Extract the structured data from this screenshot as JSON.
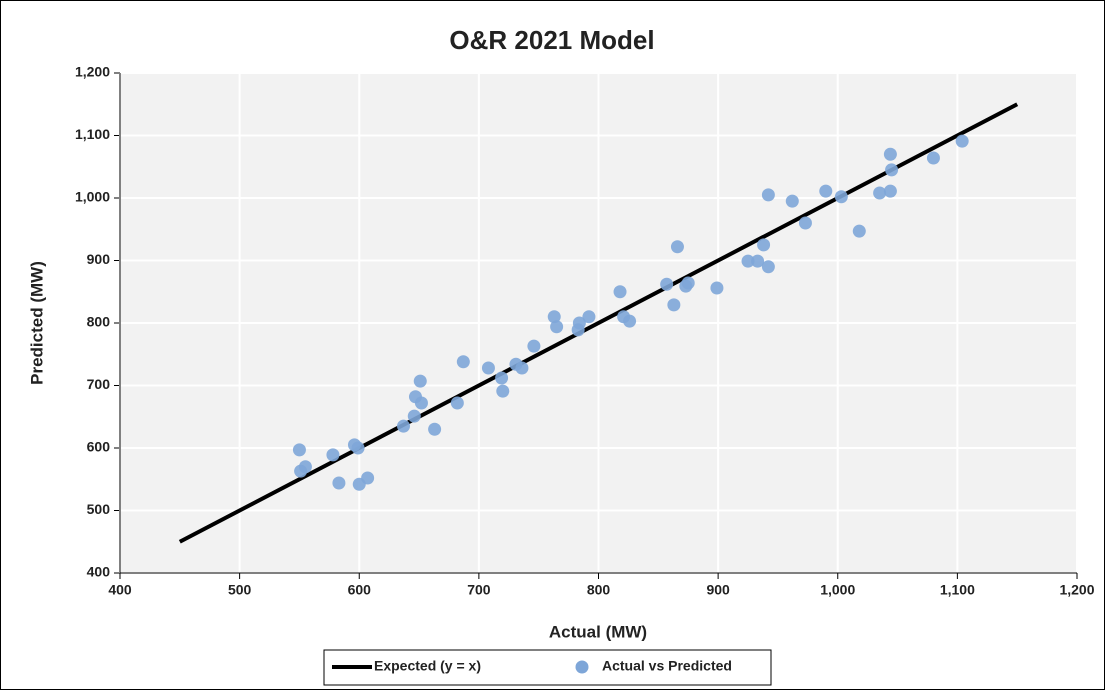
{
  "chart_data": {
    "type": "scatter",
    "title": "O&R 2021 Model",
    "xlabel": "Actual (MW)",
    "ylabel": "Predicted (MW)",
    "xlim": [
      400,
      1200
    ],
    "ylim": [
      400,
      1200
    ],
    "xticks": [
      400,
      500,
      600,
      700,
      800,
      900,
      {
        "value": 1000,
        "label": "1,000"
      },
      {
        "value": 1100,
        "label": "1,100"
      },
      {
        "value": 1200,
        "label": "1,200"
      }
    ],
    "yticks": [
      400,
      500,
      600,
      700,
      800,
      900,
      {
        "value": 1000,
        "label": "1,000"
      },
      {
        "value": 1100,
        "label": "1,100"
      },
      {
        "value": 1200,
        "label": "1,200"
      }
    ],
    "grid": true,
    "legend": "bottom",
    "series": [
      {
        "name": "Expected (y = x)",
        "mode": "line",
        "color": "#000000",
        "x": [
          450,
          1150
        ],
        "values": [
          450,
          1150
        ]
      },
      {
        "name": "Actual vs Predicted",
        "mode": "markers",
        "color": "#7ea6d8",
        "x": [
          550,
          551,
          555,
          578,
          583,
          596,
          599,
          600,
          607,
          637,
          647,
          646,
          651,
          652,
          663,
          682,
          687,
          708,
          719,
          720,
          731,
          736,
          746,
          763,
          765,
          784,
          783,
          792,
          818,
          821,
          826,
          857,
          863,
          866,
          873,
          875,
          899,
          925,
          933,
          938,
          942,
          942,
          962,
          973,
          990,
          1003,
          1018,
          1035,
          1044,
          1045,
          1044,
          1080,
          1104
        ],
        "values": [
          597,
          563,
          570,
          589,
          544,
          605,
          600,
          542,
          552,
          635,
          682,
          651,
          707,
          672,
          630,
          672,
          738,
          728,
          712,
          691,
          734,
          728,
          763,
          810,
          794,
          800,
          789,
          810,
          850,
          810,
          803,
          862,
          829,
          922,
          859,
          864,
          856,
          899,
          899,
          925,
          890,
          1005,
          995,
          960,
          1011,
          1002,
          947,
          1008,
          1011,
          1045,
          1070,
          1064,
          1091
        ]
      }
    ]
  }
}
